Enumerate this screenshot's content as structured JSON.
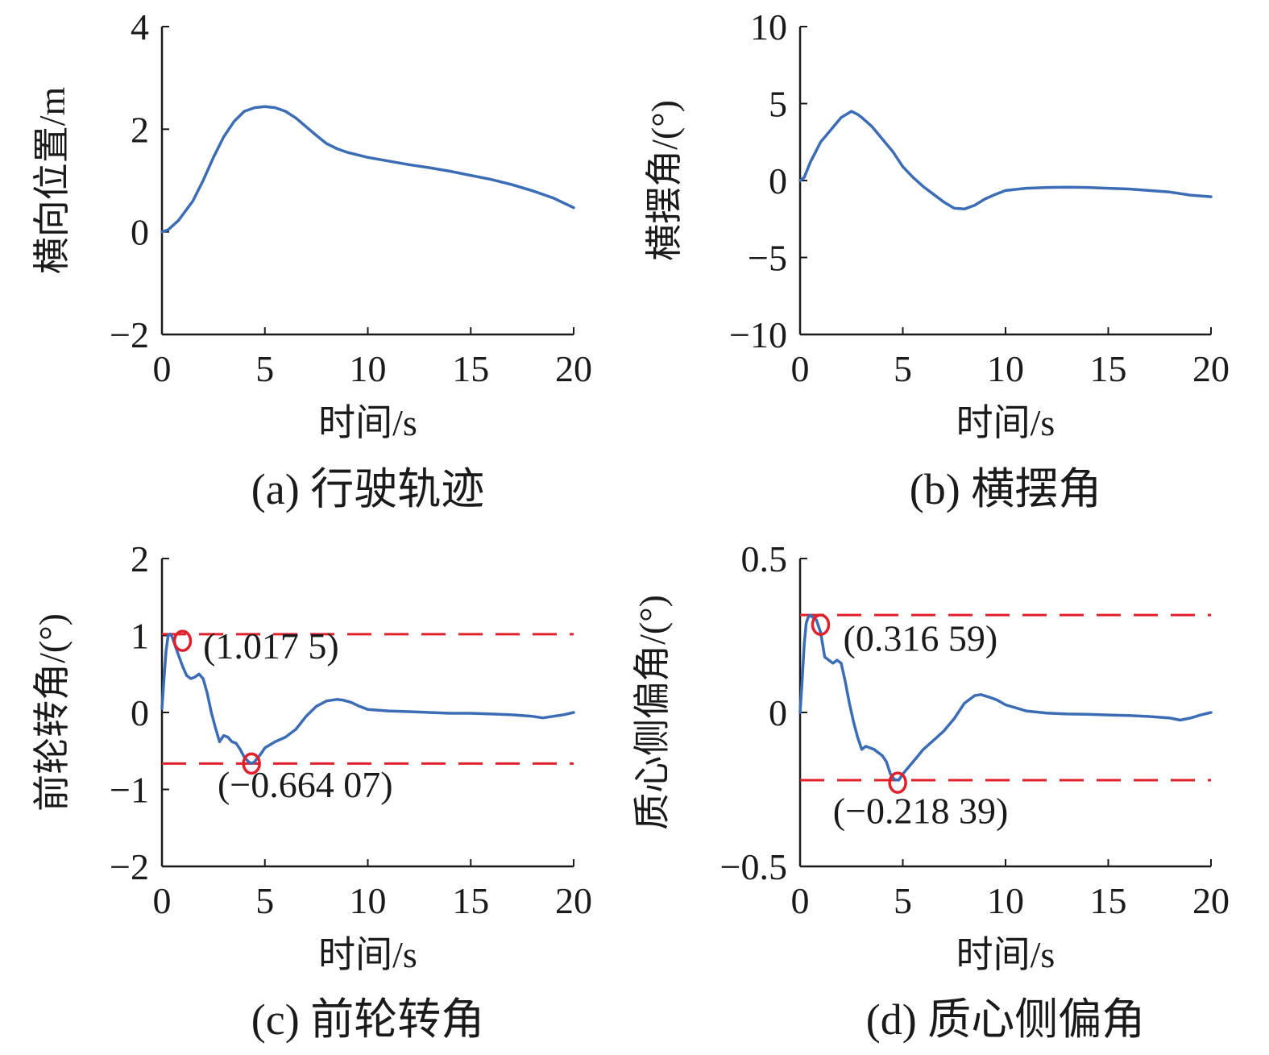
{
  "colors": {
    "series": "#3b6cb5",
    "reference": "#e0202a",
    "marker": "#e0202a",
    "axis": "#1a1a1a"
  },
  "chart_data": [
    {
      "id": "a",
      "type": "line",
      "caption": "(a) 行驶轨迹",
      "xlabel": "时间/s",
      "ylabel": "横向位置/m",
      "xlim": [
        0,
        20
      ],
      "ylim": [
        -2,
        4
      ],
      "xticks": [
        0,
        5,
        10,
        15,
        20
      ],
      "xtick_labels": [
        "0",
        "5",
        "10",
        "15",
        "20"
      ],
      "yticks": [
        -2,
        0,
        2,
        4
      ],
      "ytick_labels": [
        "−2",
        "0",
        "2",
        "4"
      ],
      "series": [
        {
          "name": "横向位置",
          "x": [
            0,
            0.3,
            0.8,
            1.5,
            2.0,
            2.5,
            3.0,
            3.5,
            4.0,
            4.5,
            5.0,
            5.5,
            6.0,
            6.5,
            7.0,
            7.5,
            8.0,
            8.5,
            9.0,
            10.0,
            11.0,
            12.0,
            13.0,
            14.0,
            15.0,
            16.0,
            17.0,
            18.0,
            19.0,
            20.0
          ],
          "y": [
            0,
            0.04,
            0.22,
            0.6,
            1.0,
            1.45,
            1.85,
            2.15,
            2.35,
            2.42,
            2.44,
            2.42,
            2.35,
            2.22,
            2.05,
            1.88,
            1.72,
            1.62,
            1.55,
            1.45,
            1.38,
            1.31,
            1.25,
            1.18,
            1.1,
            1.02,
            0.92,
            0.8,
            0.66,
            0.47
          ]
        }
      ],
      "hlines": [],
      "markers": [],
      "annotations": []
    },
    {
      "id": "b",
      "type": "line",
      "caption": "(b) 横摆角",
      "xlabel": "时间/s",
      "ylabel": "横摆角/(°)",
      "xlim": [
        0,
        20
      ],
      "ylim": [
        -10,
        10
      ],
      "xticks": [
        0,
        5,
        10,
        15,
        20
      ],
      "xtick_labels": [
        "0",
        "5",
        "10",
        "15",
        "20"
      ],
      "yticks": [
        -10,
        -5,
        0,
        5,
        10
      ],
      "ytick_labels": [
        "−10",
        "−5",
        "0",
        "5",
        "10"
      ],
      "series": [
        {
          "name": "横摆角",
          "x": [
            0,
            0.2,
            0.5,
            1.0,
            1.5,
            2.0,
            2.5,
            2.8,
            3.0,
            3.5,
            4.0,
            4.5,
            5.0,
            5.5,
            6.0,
            6.5,
            7.0,
            7.5,
            8.0,
            8.5,
            9.0,
            9.5,
            10.0,
            11.0,
            12.0,
            13.0,
            14.0,
            15.0,
            16.0,
            17.0,
            18.0,
            19.0,
            20.0
          ],
          "y": [
            0,
            0.2,
            1.2,
            2.5,
            3.3,
            4.1,
            4.5,
            4.3,
            4.1,
            3.5,
            2.7,
            1.9,
            0.9,
            0.2,
            -0.4,
            -0.9,
            -1.4,
            -1.8,
            -1.85,
            -1.6,
            -1.2,
            -0.9,
            -0.65,
            -0.5,
            -0.45,
            -0.43,
            -0.45,
            -0.5,
            -0.55,
            -0.65,
            -0.75,
            -0.95,
            -1.05
          ]
        }
      ],
      "hlines": [],
      "markers": [],
      "annotations": []
    },
    {
      "id": "c",
      "type": "line",
      "caption": "(c) 前轮转角",
      "xlabel": "时间/s",
      "ylabel": "前轮转角/(°)",
      "xlim": [
        0,
        20
      ],
      "ylim": [
        -2,
        2
      ],
      "xticks": [
        0,
        5,
        10,
        15,
        20
      ],
      "xtick_labels": [
        "0",
        "5",
        "10",
        "15",
        "20"
      ],
      "yticks": [
        -2,
        -1,
        0,
        1,
        2
      ],
      "ytick_labels": [
        "−2",
        "−1",
        "0",
        "1",
        "2"
      ],
      "series": [
        {
          "name": "前轮转角",
          "x": [
            0,
            0.1,
            0.2,
            0.3,
            0.4,
            0.5,
            0.6,
            0.8,
            1.0,
            1.2,
            1.4,
            1.6,
            1.8,
            2.0,
            2.2,
            2.4,
            2.6,
            2.8,
            3.0,
            3.2,
            3.4,
            3.6,
            3.8,
            4.0,
            4.2,
            4.35,
            4.5,
            4.8,
            5.0,
            5.5,
            6.0,
            6.5,
            7.0,
            7.5,
            8.0,
            8.5,
            8.8,
            9.2,
            9.6,
            10.0,
            11.0,
            12.0,
            13.0,
            14.0,
            15.0,
            16.0,
            17.0,
            18.0,
            18.5,
            19.0,
            19.5,
            20.0
          ],
          "y": [
            0.05,
            0.45,
            0.8,
            1.0,
            1.0175,
            0.98,
            0.9,
            0.75,
            0.6,
            0.48,
            0.44,
            0.46,
            0.5,
            0.44,
            0.25,
            0.0,
            -0.2,
            -0.38,
            -0.3,
            -0.32,
            -0.38,
            -0.4,
            -0.48,
            -0.58,
            -0.64,
            -0.664,
            -0.64,
            -0.54,
            -0.46,
            -0.38,
            -0.32,
            -0.22,
            -0.05,
            0.08,
            0.15,
            0.17,
            0.16,
            0.13,
            0.08,
            0.04,
            0.02,
            0.01,
            0.0,
            -0.01,
            -0.01,
            -0.02,
            -0.03,
            -0.05,
            -0.07,
            -0.05,
            -0.03,
            0.0
          ]
        }
      ],
      "hlines": [
        {
          "y": 1.0175,
          "style": "dashed"
        },
        {
          "y": -0.66407,
          "style": "dashed"
        }
      ],
      "markers": [
        {
          "x": 1.0,
          "y": 0.93
        },
        {
          "x": 4.35,
          "y": -0.66407
        }
      ],
      "annotations": [
        {
          "text": "(1.017 5)",
          "x": 2.0,
          "y": 0.7
        },
        {
          "text": "(−0.664 07)",
          "x": 2.7,
          "y": -1.1
        }
      ]
    },
    {
      "id": "d",
      "type": "line",
      "caption": "(d) 质心侧偏角",
      "xlabel": "时间/s",
      "ylabel": "质心侧偏角/(°)",
      "xlim": [
        0,
        20
      ],
      "ylim": [
        -0.5,
        0.5
      ],
      "xticks": [
        0,
        5,
        10,
        15,
        20
      ],
      "xtick_labels": [
        "0",
        "5",
        "10",
        "15",
        "20"
      ],
      "yticks": [
        -0.5,
        0,
        0.5
      ],
      "ytick_labels": [
        "−0.5",
        "0",
        "0.5"
      ],
      "series": [
        {
          "name": "质心侧偏角",
          "x": [
            0,
            0.1,
            0.2,
            0.3,
            0.4,
            0.5,
            0.6,
            0.8,
            1.0,
            1.2,
            1.4,
            1.6,
            1.8,
            2.0,
            2.2,
            2.4,
            2.6,
            2.8,
            3.0,
            3.2,
            3.4,
            3.6,
            3.8,
            4.0,
            4.2,
            4.4,
            4.6,
            4.8,
            5.0,
            5.5,
            6.0,
            6.5,
            7.0,
            7.5,
            8.0,
            8.5,
            8.8,
            9.2,
            9.6,
            10.0,
            11.0,
            12.0,
            13.0,
            14.0,
            15.0,
            16.0,
            17.0,
            18.0,
            18.5,
            19.0,
            19.5,
            20.0
          ],
          "y": [
            0.0,
            0.1,
            0.22,
            0.29,
            0.31,
            0.316,
            0.31,
            0.3,
            0.26,
            0.18,
            0.17,
            0.16,
            0.17,
            0.16,
            0.1,
            0.03,
            -0.03,
            -0.08,
            -0.12,
            -0.11,
            -0.115,
            -0.12,
            -0.13,
            -0.14,
            -0.16,
            -0.2,
            -0.218,
            -0.22,
            -0.2,
            -0.16,
            -0.12,
            -0.09,
            -0.06,
            -0.02,
            0.03,
            0.055,
            0.058,
            0.05,
            0.04,
            0.025,
            0.005,
            -0.002,
            -0.005,
            -0.006,
            -0.008,
            -0.01,
            -0.013,
            -0.018,
            -0.025,
            -0.018,
            -0.008,
            0.0
          ]
        }
      ],
      "hlines": [
        {
          "y": 0.31659,
          "style": "dashed"
        },
        {
          "y": -0.22,
          "style": "dashed"
        }
      ],
      "markers": [
        {
          "x": 1.0,
          "y": 0.285
        },
        {
          "x": 4.75,
          "y": -0.228
        }
      ],
      "annotations": [
        {
          "text": "(0.316 59)",
          "x": 2.1,
          "y": 0.2
        },
        {
          "text": "(−0.218 39)",
          "x": 1.6,
          "y": -0.36
        }
      ]
    }
  ]
}
